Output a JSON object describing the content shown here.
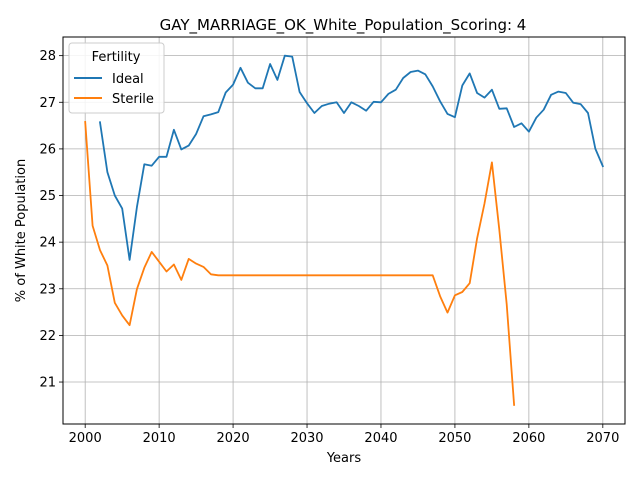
{
  "chart_data": {
    "type": "line",
    "title": "GAY_MARRIAGE_OK_White_Population_Scoring: 4",
    "xlabel": "Years",
    "ylabel": "% of White Population",
    "xlim": [
      1997,
      2073
    ],
    "ylim": [
      20.1,
      28.4
    ],
    "xticks": [
      2000,
      2010,
      2020,
      2030,
      2040,
      2050,
      2060,
      2070
    ],
    "yticks": [
      21,
      22,
      23,
      24,
      25,
      26,
      27,
      28
    ],
    "grid": true,
    "legend": {
      "title": "Fertility",
      "placement": "top-left"
    },
    "colors": {
      "Ideal": "#1f77b4",
      "Sterile": "#ff7f0e"
    },
    "series": [
      {
        "name": "Ideal",
        "x": [
          2002,
          2003,
          2004,
          2005,
          2006,
          2007,
          2008,
          2009,
          2010,
          2011,
          2012,
          2013,
          2014,
          2015,
          2016,
          2017,
          2018,
          2019,
          2020,
          2021,
          2022,
          2023,
          2024,
          2025,
          2026,
          2027,
          2028,
          2029,
          2030,
          2031,
          2032,
          2033,
          2034,
          2035,
          2036,
          2037,
          2038,
          2039,
          2040,
          2041,
          2042,
          2043,
          2044,
          2045,
          2046,
          2047,
          2048,
          2049,
          2050,
          2051,
          2052,
          2053,
          2054,
          2055,
          2056,
          2057,
          2058,
          2059,
          2060,
          2061,
          2062,
          2063,
          2064,
          2065,
          2066,
          2067,
          2068,
          2069,
          2070
        ],
        "values": [
          26.57,
          25.5,
          25.0,
          24.72,
          23.62,
          24.75,
          25.67,
          25.64,
          25.83,
          25.83,
          26.41,
          25.99,
          26.07,
          26.32,
          26.7,
          26.74,
          26.79,
          27.21,
          27.38,
          27.74,
          27.42,
          27.3,
          27.3,
          27.82,
          27.48,
          28.0,
          27.98,
          27.22,
          26.98,
          26.77,
          26.92,
          26.97,
          27.0,
          26.77,
          27.0,
          26.92,
          26.82,
          27.01,
          27.0,
          27.18,
          27.27,
          27.52,
          27.65,
          27.68,
          27.6,
          27.34,
          27.02,
          26.75,
          26.68,
          27.36,
          27.62,
          27.2,
          27.1,
          27.27,
          26.86,
          26.87,
          26.47,
          26.55,
          26.37,
          26.67,
          26.84,
          27.16,
          27.23,
          27.2,
          26.99,
          26.96,
          26.77,
          26.0,
          25.63
        ]
      },
      {
        "name": "Sterile",
        "x": [
          2000,
          2001,
          2002,
          2003,
          2004,
          2005,
          2006,
          2007,
          2008,
          2009,
          2010,
          2011,
          2012,
          2013,
          2014,
          2015,
          2016,
          2017,
          2018,
          2019,
          2020,
          2021,
          2022,
          2023,
          2024,
          2025,
          2026,
          2027,
          2028,
          2029,
          2030,
          2031,
          2032,
          2033,
          2034,
          2035,
          2036,
          2037,
          2038,
          2039,
          2040,
          2041,
          2042,
          2043,
          2044,
          2045,
          2046,
          2047,
          2048,
          2049,
          2050,
          2051,
          2052,
          2053,
          2054,
          2055,
          2056,
          2057,
          2058
        ],
        "values": [
          26.58,
          24.35,
          23.83,
          23.5,
          22.7,
          22.43,
          22.22,
          22.99,
          23.45,
          23.79,
          23.58,
          23.37,
          23.52,
          23.19,
          23.64,
          23.54,
          23.47,
          23.31,
          23.29,
          23.29,
          23.29,
          23.29,
          23.29,
          23.29,
          23.29,
          23.29,
          23.29,
          23.29,
          23.29,
          23.29,
          23.29,
          23.29,
          23.29,
          23.29,
          23.29,
          23.29,
          23.29,
          23.29,
          23.29,
          23.29,
          23.29,
          23.29,
          23.29,
          23.29,
          23.29,
          23.29,
          23.29,
          23.29,
          22.84,
          22.49,
          22.86,
          22.93,
          23.12,
          24.08,
          24.83,
          25.71,
          24.27,
          22.67,
          20.51
        ]
      }
    ]
  }
}
